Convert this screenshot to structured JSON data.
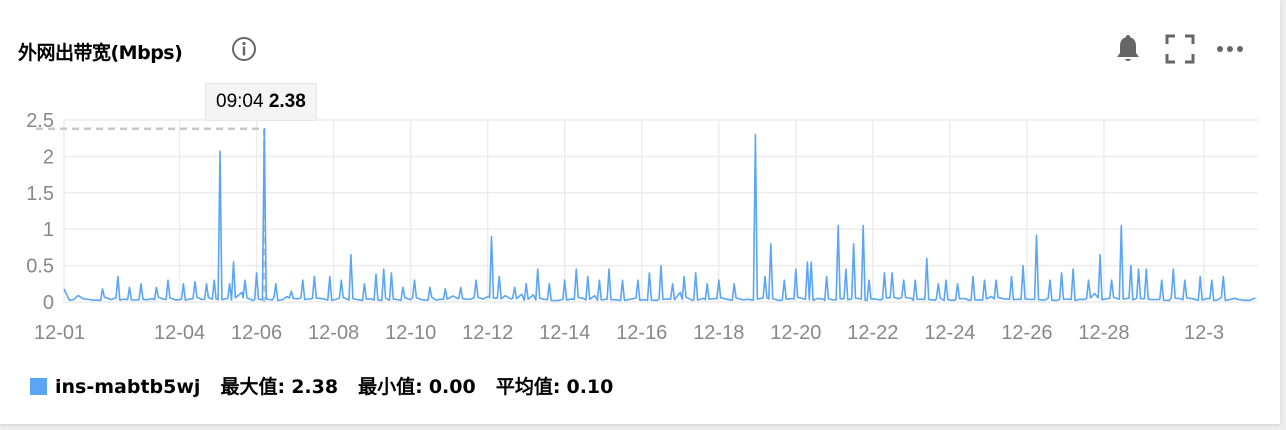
{
  "header": {
    "title": "外网出带宽(Mbps)",
    "icons": [
      "info-icon",
      "bell-icon",
      "fullscreen-icon",
      "more-icon"
    ]
  },
  "tooltip": {
    "time": "09:04",
    "value": "2.38"
  },
  "legend": {
    "series_name": "ins-mabtb5wj",
    "max_label": "最大值:",
    "max_value": "2.38",
    "min_label": "最小值:",
    "min_value": "0.00",
    "avg_label": "平均值:",
    "avg_value": "0.10"
  },
  "colors": {
    "series": "#5aa5f5",
    "grid": "#ececec",
    "axis_text": "#888888",
    "crosshair": "#c8c8c8"
  },
  "chart_data": {
    "type": "line",
    "title": "外网出带宽(Mbps)",
    "xlabel": "",
    "ylabel": "",
    "ylim": [
      0,
      2.5
    ],
    "yticks": [
      "0",
      "0.5",
      "1",
      "1.5",
      "2",
      "2.5"
    ],
    "xticks": [
      "12-01",
      "12-04",
      "12-06",
      "12-08",
      "12-10",
      "12-12",
      "12-14",
      "12-16",
      "12-18",
      "12-20",
      "12-22",
      "12-24",
      "12-26",
      "12-28",
      "12-3"
    ],
    "grid": true,
    "legend_position": "bottom-left",
    "series": [
      {
        "name": "ins-mabtb5wj",
        "baseline": 0.02,
        "peaks": [
          {
            "x": 1.0,
            "y": 0.18
          },
          {
            "x": 1.4,
            "y": 0.35
          },
          {
            "x": 1.7,
            "y": 0.2
          },
          {
            "x": 2.0,
            "y": 0.25
          },
          {
            "x": 2.4,
            "y": 0.2
          },
          {
            "x": 2.7,
            "y": 0.3
          },
          {
            "x": 3.1,
            "y": 0.25
          },
          {
            "x": 3.4,
            "y": 0.28
          },
          {
            "x": 3.7,
            "y": 0.25
          },
          {
            "x": 3.9,
            "y": 0.3
          },
          {
            "x": 4.05,
            "y": 2.07
          },
          {
            "x": 4.3,
            "y": 0.25
          },
          {
            "x": 4.4,
            "y": 0.55
          },
          {
            "x": 4.7,
            "y": 0.3
          },
          {
            "x": 5.0,
            "y": 0.4
          },
          {
            "x": 5.2,
            "y": 2.38
          },
          {
            "x": 5.5,
            "y": 0.25
          },
          {
            "x": 5.9,
            "y": 0.15
          },
          {
            "x": 6.2,
            "y": 0.3
          },
          {
            "x": 6.5,
            "y": 0.35
          },
          {
            "x": 6.9,
            "y": 0.35
          },
          {
            "x": 7.2,
            "y": 0.3
          },
          {
            "x": 7.45,
            "y": 0.65
          },
          {
            "x": 7.8,
            "y": 0.25
          },
          {
            "x": 8.1,
            "y": 0.38
          },
          {
            "x": 8.3,
            "y": 0.45
          },
          {
            "x": 8.5,
            "y": 0.4
          },
          {
            "x": 8.8,
            "y": 0.2
          },
          {
            "x": 9.1,
            "y": 0.3
          },
          {
            "x": 9.5,
            "y": 0.2
          },
          {
            "x": 9.9,
            "y": 0.18
          },
          {
            "x": 10.3,
            "y": 0.2
          },
          {
            "x": 10.7,
            "y": 0.3
          },
          {
            "x": 11.1,
            "y": 0.9
          },
          {
            "x": 11.3,
            "y": 0.35
          },
          {
            "x": 11.7,
            "y": 0.2
          },
          {
            "x": 12.0,
            "y": 0.25
          },
          {
            "x": 12.3,
            "y": 0.45
          },
          {
            "x": 12.6,
            "y": 0.25
          },
          {
            "x": 13.0,
            "y": 0.3
          },
          {
            "x": 13.3,
            "y": 0.45
          },
          {
            "x": 13.6,
            "y": 0.35
          },
          {
            "x": 13.9,
            "y": 0.3
          },
          {
            "x": 14.15,
            "y": 0.45
          },
          {
            "x": 14.5,
            "y": 0.3
          },
          {
            "x": 14.9,
            "y": 0.3
          },
          {
            "x": 15.2,
            "y": 0.4
          },
          {
            "x": 15.5,
            "y": 0.5
          },
          {
            "x": 15.8,
            "y": 0.25
          },
          {
            "x": 16.1,
            "y": 0.35
          },
          {
            "x": 16.4,
            "y": 0.4
          },
          {
            "x": 16.7,
            "y": 0.25
          },
          {
            "x": 17.0,
            "y": 0.3
          },
          {
            "x": 17.4,
            "y": 0.25
          },
          {
            "x": 17.95,
            "y": 2.3
          },
          {
            "x": 18.2,
            "y": 0.35
          },
          {
            "x": 18.35,
            "y": 0.8
          },
          {
            "x": 18.7,
            "y": 0.3
          },
          {
            "x": 19.0,
            "y": 0.45
          },
          {
            "x": 19.3,
            "y": 0.55
          },
          {
            "x": 19.4,
            "y": 0.55
          },
          {
            "x": 19.8,
            "y": 0.35
          },
          {
            "x": 20.1,
            "y": 1.05
          },
          {
            "x": 20.3,
            "y": 0.45
          },
          {
            "x": 20.5,
            "y": 0.8
          },
          {
            "x": 20.75,
            "y": 1.05
          },
          {
            "x": 20.9,
            "y": 0.3
          },
          {
            "x": 21.3,
            "y": 0.4
          },
          {
            "x": 21.5,
            "y": 0.4
          },
          {
            "x": 21.8,
            "y": 0.3
          },
          {
            "x": 22.1,
            "y": 0.3
          },
          {
            "x": 22.4,
            "y": 0.6
          },
          {
            "x": 22.7,
            "y": 0.25
          },
          {
            "x": 22.9,
            "y": 0.3
          },
          {
            "x": 23.2,
            "y": 0.25
          },
          {
            "x": 23.6,
            "y": 0.35
          },
          {
            "x": 23.9,
            "y": 0.3
          },
          {
            "x": 24.2,
            "y": 0.3
          },
          {
            "x": 24.6,
            "y": 0.35
          },
          {
            "x": 24.9,
            "y": 0.5
          },
          {
            "x": 25.25,
            "y": 0.92
          },
          {
            "x": 25.6,
            "y": 0.3
          },
          {
            "x": 25.9,
            "y": 0.4
          },
          {
            "x": 26.2,
            "y": 0.45
          },
          {
            "x": 26.6,
            "y": 0.3
          },
          {
            "x": 26.9,
            "y": 0.65
          },
          {
            "x": 27.2,
            "y": 0.3
          },
          {
            "x": 27.45,
            "y": 1.05
          },
          {
            "x": 27.7,
            "y": 0.5
          },
          {
            "x": 27.9,
            "y": 0.45
          },
          {
            "x": 28.1,
            "y": 0.45
          },
          {
            "x": 28.5,
            "y": 0.3
          },
          {
            "x": 28.8,
            "y": 0.45
          },
          {
            "x": 29.1,
            "y": 0.3
          },
          {
            "x": 29.5,
            "y": 0.35
          },
          {
            "x": 29.8,
            "y": 0.3
          },
          {
            "x": 30.1,
            "y": 0.35
          }
        ]
      }
    ],
    "tooltip": {
      "time": "09:04",
      "value": 2.38,
      "x": 5.2
    }
  }
}
